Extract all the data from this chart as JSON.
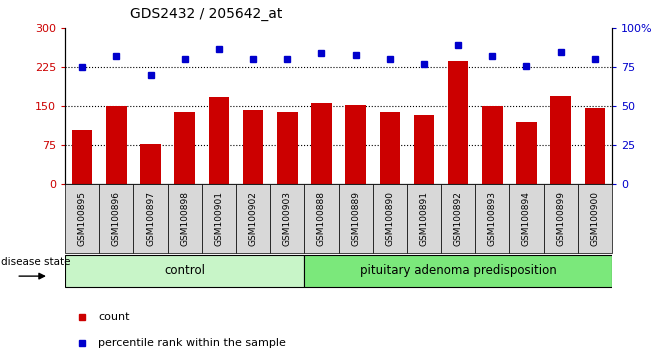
{
  "title": "GDS2432 / 205642_at",
  "samples": [
    "GSM100895",
    "GSM100896",
    "GSM100897",
    "GSM100898",
    "GSM100901",
    "GSM100902",
    "GSM100903",
    "GSM100888",
    "GSM100889",
    "GSM100890",
    "GSM100891",
    "GSM100892",
    "GSM100893",
    "GSM100894",
    "GSM100899",
    "GSM100900"
  ],
  "counts": [
    105,
    150,
    78,
    138,
    168,
    143,
    138,
    157,
    152,
    138,
    133,
    237,
    150,
    120,
    170,
    147
  ],
  "percentiles": [
    75,
    82,
    70,
    80,
    87,
    80,
    80,
    84,
    83,
    80,
    77,
    89,
    82,
    76,
    85,
    80
  ],
  "control_count": 7,
  "group_labels": [
    "control",
    "pituitary adenoma predisposition"
  ],
  "control_color": "#c8f5c8",
  "pituitary_color": "#7be87b",
  "bar_color": "#cc0000",
  "dot_color": "#0000cc",
  "ylim_left": [
    0,
    300
  ],
  "ylim_right": [
    0,
    100
  ],
  "yticks_left": [
    0,
    75,
    150,
    225,
    300
  ],
  "yticks_right": [
    0,
    25,
    50,
    75,
    100
  ],
  "ytick_labels_left": [
    "0",
    "75",
    "150",
    "225",
    "300"
  ],
  "ytick_labels_right": [
    "0",
    "25",
    "50",
    "75",
    "100%"
  ],
  "hlines": [
    75,
    150,
    225
  ],
  "plot_bg": "#ffffff",
  "xtick_bg": "#d8d8d8",
  "legend_count_label": "count",
  "legend_percentile_label": "percentile rank within the sample",
  "disease_state_label": "disease state"
}
